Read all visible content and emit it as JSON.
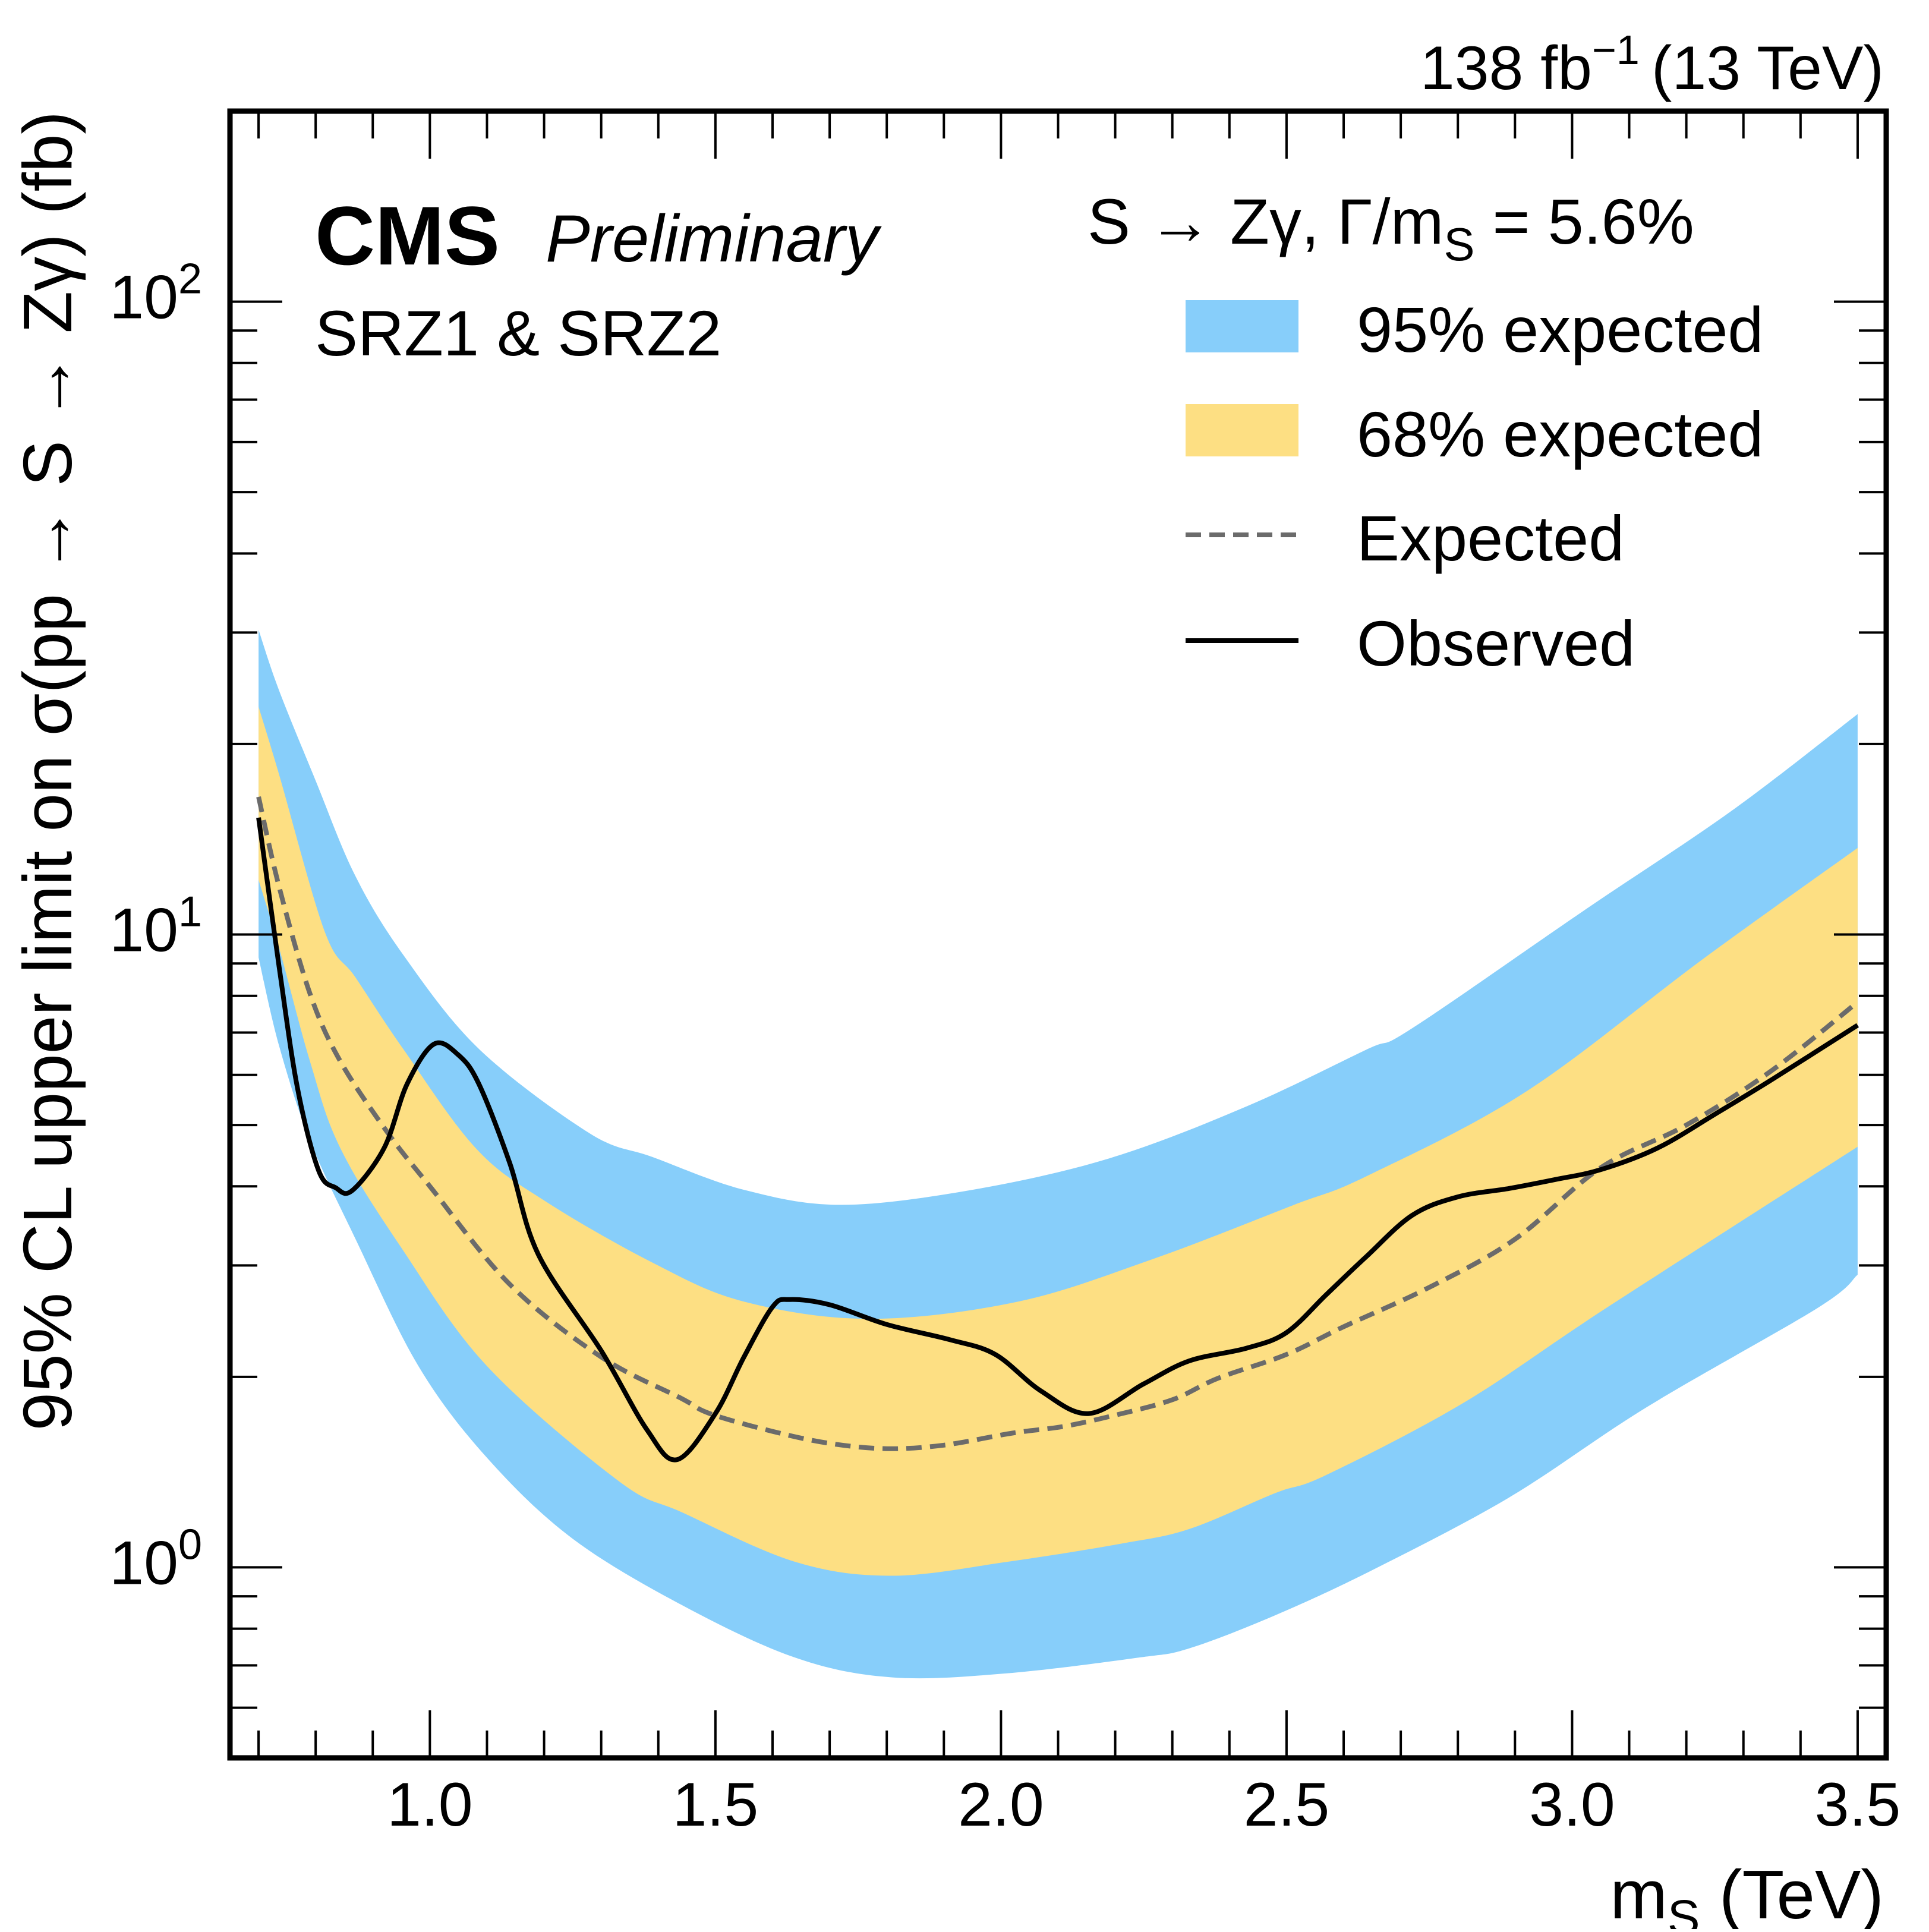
{
  "header": {
    "lumi_label": "138 fb",
    "lumi_sup": "−1",
    "energy_label": "(13 TeV)",
    "experiment": "CMS",
    "status": "Preliminary",
    "region": "SRZ1 & SRZ2",
    "model_label": "S → Zγ,  Γ/m",
    "model_sub": "S",
    "model_value": " = 5.6%"
  },
  "chart_data": {
    "type": "line",
    "title": "",
    "xlabel": "m",
    "xlabel_sub": "S",
    "xlabel_unit": " (TeV)",
    "ylabel": "95% CL upper limit on σ(pp → S → Zγ) (fb)",
    "xlim": [
      0.65,
      3.55
    ],
    "ylim": [
      0.5,
      200
    ],
    "yscale": "log",
    "grid": false,
    "legend_position": "top-right",
    "x_ticks": [
      {
        "value": 1.0,
        "label": "1.0"
      },
      {
        "value": 1.5,
        "label": "1.5"
      },
      {
        "value": 2.0,
        "label": "2.0"
      },
      {
        "value": 2.5,
        "label": "2.5"
      },
      {
        "value": 3.0,
        "label": "3.0"
      },
      {
        "value": 3.5,
        "label": "3.5"
      }
    ],
    "y_ticks": [
      {
        "value": 1,
        "base": "10",
        "exp": "0"
      },
      {
        "value": 10,
        "base": "10",
        "exp": "1"
      },
      {
        "value": 100,
        "base": "10",
        "exp": "2"
      }
    ],
    "legend": [
      {
        "label": "95% expected",
        "kind": "band",
        "color": "#87cefa"
      },
      {
        "label": "68% expected",
        "kind": "band",
        "color": "#fddf83"
      },
      {
        "label": "Expected",
        "kind": "dashed",
        "color": "#6b6b6b"
      },
      {
        "label": "Observed",
        "kind": "solid",
        "color": "#000000"
      }
    ],
    "series": [
      {
        "name": "95% expected",
        "kind": "band",
        "color": "#87cefa",
        "upper": {
          "x": [
            0.7,
            0.736,
            0.8,
            0.869,
            0.954,
            1.087,
            1.28,
            1.39,
            1.55,
            1.72,
            1.95,
            2.19,
            2.43,
            2.64,
            2.72,
            3.02,
            3.28,
            3.5
          ],
          "y": [
            30.3,
            24.3,
            17.5,
            12.4,
            9.27,
            6.58,
            4.85,
            4.45,
            3.95,
            3.74,
            3.95,
            4.43,
            5.35,
            6.58,
            7.11,
            10.9,
            15.7,
            22.3
          ]
        },
        "lower": {
          "x": [
            0.7,
            0.736,
            0.79,
            0.87,
            0.98,
            1.1,
            1.25,
            1.443,
            1.64,
            1.81,
            2.01,
            2.24,
            2.33,
            2.48,
            2.65,
            2.89,
            3.13,
            3.43,
            3.5
          ],
          "y": [
            9.2,
            6.67,
            4.73,
            3.3,
            2.08,
            1.49,
            1.11,
            0.87,
            0.72,
            0.67,
            0.68,
            0.72,
            0.745,
            0.84,
            0.99,
            1.29,
            1.79,
            2.57,
            2.9
          ]
        }
      },
      {
        "name": "68% expected",
        "kind": "band",
        "color": "#fddf83",
        "upper": {
          "x": [
            0.7,
            0.736,
            0.816,
            0.87,
            0.954,
            1.08,
            1.2,
            1.39,
            1.55,
            1.77,
            2.03,
            2.27,
            2.51,
            2.64,
            2.92,
            3.23,
            3.5
          ],
          "y": [
            22.9,
            17.9,
            10.1,
            8.55,
            6.58,
            4.6,
            3.8,
            3.03,
            2.63,
            2.47,
            2.63,
            3.08,
            3.73,
            4.15,
            5.65,
            9.16,
            13.7
          ]
        },
        "lower": {
          "x": [
            0.7,
            0.736,
            0.79,
            0.843,
            0.95,
            1.1,
            1.33,
            1.443,
            1.64,
            1.81,
            2.01,
            2.21,
            2.33,
            2.48,
            2.57,
            2.81,
            3.06,
            3.5
          ],
          "y": [
            12.2,
            9.53,
            6.31,
            4.6,
            3.2,
            2.08,
            1.37,
            1.22,
            1.02,
            0.97,
            1.02,
            1.09,
            1.15,
            1.31,
            1.4,
            1.82,
            2.57,
            4.62
          ]
        }
      },
      {
        "name": "Expected",
        "kind": "dashed",
        "color": "#6b6b6b",
        "x": [
          0.7,
          0.736,
          0.79,
          0.843,
          0.927,
          1.0,
          1.14,
          1.3,
          1.44,
          1.49,
          1.6,
          1.7,
          1.8,
          1.9,
          2.02,
          2.11,
          2.2,
          2.3,
          2.38,
          2.5,
          2.6,
          2.75,
          2.9,
          3.05,
          3.2,
          3.35,
          3.5
        ],
        "y": [
          16.5,
          11.9,
          8.07,
          6.31,
          4.85,
          4.0,
          2.8,
          2.15,
          1.85,
          1.75,
          1.64,
          1.57,
          1.54,
          1.56,
          1.63,
          1.67,
          1.74,
          1.84,
          1.99,
          2.17,
          2.4,
          2.77,
          3.3,
          4.28,
          5.0,
          6.1,
          7.82
        ]
      },
      {
        "name": "Observed",
        "kind": "solid",
        "color": "#000000",
        "x": [
          0.7,
          0.736,
          0.768,
          0.805,
          0.835,
          0.864,
          0.92,
          0.96,
          1.007,
          1.05,
          1.086,
          1.14,
          1.19,
          1.3,
          1.38,
          1.433,
          1.5,
          1.55,
          1.6,
          1.63,
          1.7,
          1.8,
          1.91,
          1.99,
          2.07,
          2.154,
          2.25,
          2.33,
          2.43,
          2.5,
          2.57,
          2.64,
          2.72,
          2.8,
          2.89,
          2.97,
          3.05,
          3.15,
          3.25,
          3.35,
          3.5
        ],
        "y": [
          15.3,
          8.9,
          5.73,
          4.24,
          3.98,
          3.94,
          4.6,
          5.8,
          6.71,
          6.45,
          5.8,
          4.35,
          3.12,
          2.2,
          1.65,
          1.48,
          1.75,
          2.15,
          2.58,
          2.65,
          2.6,
          2.42,
          2.29,
          2.17,
          1.9,
          1.75,
          1.95,
          2.12,
          2.22,
          2.35,
          2.7,
          3.1,
          3.6,
          3.85,
          3.97,
          4.1,
          4.25,
          4.6,
          5.2,
          5.9,
          7.19
        ]
      }
    ]
  }
}
